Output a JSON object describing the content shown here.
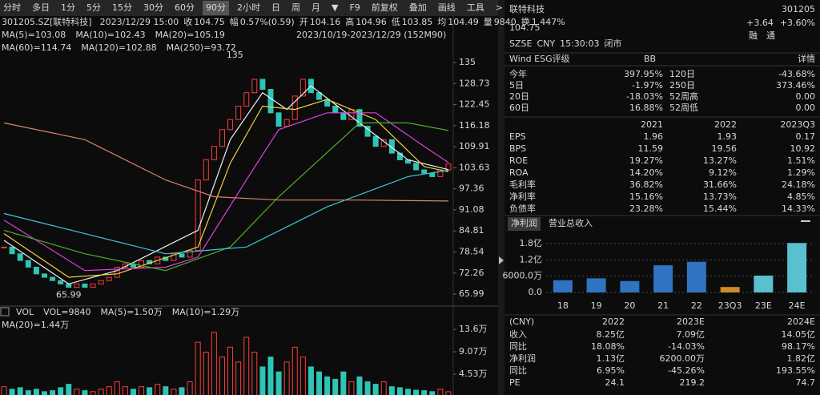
{
  "toolbar": {
    "items": [
      "分时",
      "多日",
      "1分",
      "5分",
      "15分",
      "30分",
      "60分",
      "90分",
      "2小时",
      "日",
      "周",
      "月",
      "▼",
      "F9",
      "前复权",
      "叠加",
      "画线",
      "工具",
      ">"
    ],
    "selected_index": 7
  },
  "quote_bar": {
    "symbol": "301205.SZ[联特科技]",
    "time": "2023/12/29 15:00",
    "fields": [
      {
        "label": "收",
        "value": "104.75",
        "color": "#ff3b3b"
      },
      {
        "label": "幅",
        "value": "0.57%(0.59)",
        "color": "#ff3b3b"
      },
      {
        "label": "开",
        "value": "104.16",
        "color": "#dddddd"
      },
      {
        "label": "高",
        "value": "104.96",
        "color": "#ff3b3b"
      },
      {
        "label": "低",
        "value": "103.85",
        "color": "#19c37d"
      },
      {
        "label": "均",
        "value": "104.49",
        "color": "#dddddd"
      },
      {
        "label": "量",
        "value": "9840",
        "color": "#dddddd"
      },
      {
        "label": "换",
        "value": "1.447%",
        "color": "#dddddd"
      }
    ]
  },
  "chart_data": [
    {
      "type": "candlestick",
      "range_label": "2023/10/19-2023/12/29 (152M90)",
      "high_label": "135",
      "low_label": "65.99",
      "up_color": "#ff3b3b",
      "down_color": "#2ec4b6",
      "closes": [
        80,
        78,
        76,
        74,
        72,
        71,
        70,
        69,
        68,
        69,
        68,
        69,
        70,
        71,
        74,
        75,
        74,
        76,
        75,
        77,
        76,
        78,
        77,
        79,
        100,
        106,
        110,
        115,
        118,
        122,
        126,
        130,
        127,
        120,
        116,
        118,
        125,
        130,
        126,
        124,
        122,
        120,
        118,
        121,
        116,
        113,
        110,
        112,
        108,
        106,
        105,
        103,
        102,
        101,
        103,
        104.75
      ],
      "series": [
        {
          "name": "MA(5)=103.08",
          "color": "#f0f0f0",
          "x": [
            0,
            8,
            14,
            24,
            28,
            32,
            35,
            38,
            44,
            50,
            55
          ],
          "values": [
            82,
            69,
            73,
            85,
            112,
            126,
            121,
            128,
            117,
            106,
            103.08
          ]
        },
        {
          "name": "MA(10)=102.43",
          "color": "#f2d43a",
          "x": [
            0,
            8,
            14,
            24,
            28,
            32,
            36,
            40,
            46,
            52,
            55
          ],
          "values": [
            84,
            71,
            72,
            80,
            105,
            122,
            121,
            124,
            118,
            104,
            102.43
          ]
        },
        {
          "name": "MA(20)=105.19",
          "color": "#e040e0",
          "x": [
            0,
            10,
            20,
            24,
            30,
            34,
            40,
            46,
            52,
            55
          ],
          "values": [
            88,
            73,
            74,
            77,
            100,
            115,
            120,
            120,
            110,
            105.19
          ]
        },
        {
          "name": "MA(60)=114.74",
          "color": "#4caf2a",
          "x": [
            0,
            10,
            20,
            28,
            34,
            44,
            50,
            55
          ],
          "values": [
            85,
            78,
            73,
            80,
            95,
            117,
            117,
            114.74
          ]
        },
        {
          "name": "MA(120)=102.88",
          "color": "#3cc8e0",
          "x": [
            0,
            10,
            20,
            30,
            40,
            50,
            55
          ],
          "values": [
            90,
            84,
            78,
            80,
            92,
            101,
            102.88
          ]
        },
        {
          "name": "MA(250)=93.72",
          "color": "#e08070",
          "x": [
            0,
            10,
            20,
            26,
            34,
            44,
            55
          ],
          "values": [
            117,
            112,
            100,
            95,
            94,
            94,
            93.72
          ]
        }
      ],
      "ylim": [
        62.89,
        139.78
      ],
      "yticks": [
        135,
        128.73,
        122.45,
        116.18,
        109.91,
        103.63,
        97.36,
        91.08,
        84.81,
        78.54,
        72.26,
        65.99
      ]
    },
    {
      "type": "volume",
      "legend": [
        {
          "text": "VOL",
          "color": "#dddddd"
        },
        {
          "text": "VOL=9840",
          "color": "#dddddd"
        },
        {
          "text": "MA(5)=1.50万",
          "color": "#dddddd"
        },
        {
          "text": "MA(10)=1.29万",
          "color": "#f2d43a"
        },
        {
          "text": "MA(20)=1.44万",
          "color": "#e040e0"
        }
      ],
      "values": [
        2,
        1.5,
        1.8,
        1.2,
        1.5,
        1,
        1.2,
        1.8,
        2.5,
        1.5,
        1.2,
        1,
        1.5,
        2,
        3,
        2,
        1.5,
        2,
        1.8,
        2.5,
        2,
        1.5,
        1.8,
        3,
        11,
        9,
        13,
        8,
        10,
        7,
        12,
        9,
        6,
        8,
        5,
        7,
        10,
        8,
        6,
        5,
        4,
        3.5,
        5,
        3,
        4,
        3,
        2.5,
        3,
        2,
        1.8,
        1.5,
        1.3,
        1.2,
        1,
        1.5,
        0.984
      ],
      "ylim": [
        0,
        15.4
      ],
      "yticks": [
        {
          "value": 13.6,
          "label": "13.6万"
        },
        {
          "value": 9.07,
          "label": "9.07万"
        },
        {
          "value": 4.53,
          "label": "4.53万"
        }
      ]
    },
    {
      "type": "bar",
      "tabs": [
        "净利润",
        "营业总收入"
      ],
      "active_tab": 0,
      "categories": [
        "18",
        "19",
        "20",
        "21",
        "22",
        "23Q3",
        "23E",
        "24E"
      ],
      "values": [
        0.45,
        0.52,
        0.42,
        1.0,
        1.13,
        0.2,
        0.62,
        1.82
      ],
      "colors": [
        "#2e74c0",
        "#2e74c0",
        "#2e74c0",
        "#2e74c0",
        "#2e74c0",
        "#d08a2a",
        "#58c0cf",
        "#58c0cf"
      ],
      "ylim": [
        0,
        2.36
      ],
      "yticks": [
        {
          "value": 0,
          "label": "0.0"
        },
        {
          "value": 0.6,
          "label": "6000.0万"
        },
        {
          "value": 1.2,
          "label": "1.2亿"
        },
        {
          "value": 1.8,
          "label": "1.8亿"
        }
      ],
      "grid": true
    }
  ],
  "right_panel": {
    "name": "联特科技",
    "code": "301205",
    "price": "104.75",
    "change": "+3.64",
    "change_pct": "+3.60%",
    "meta": [
      "SZSE",
      "CNY",
      "15:30:03",
      "闭市"
    ],
    "badges": [
      "融",
      "通"
    ],
    "esg": {
      "label": "Wind ESG评级",
      "rating": "BB",
      "link": "详情"
    },
    "returns": [
      [
        "今年",
        "397.95%",
        "120日",
        "-43.68%"
      ],
      [
        "5日",
        "-1.97%",
        "250日",
        "373.46%"
      ],
      [
        "20日",
        "-18.03%",
        "52周高",
        "0.00"
      ],
      [
        "60日",
        "16.88%",
        "52周低",
        "0.00"
      ]
    ],
    "fin": {
      "header": [
        "2021",
        "2022",
        "2023Q3"
      ],
      "rows": [
        [
          "EPS",
          "1.96",
          "1.93",
          "0.17"
        ],
        [
          "BPS",
          "11.59",
          "19.56",
          "10.92"
        ],
        [
          "ROE",
          "19.27%",
          "13.27%",
          "1.51%"
        ],
        [
          "ROA",
          "14.20%",
          "9.12%",
          "1.29%"
        ],
        [
          "毛利率",
          "36.82%",
          "31.66%",
          "24.18%"
        ],
        [
          "净利率",
          "15.16%",
          "13.73%",
          "4.85%"
        ],
        [
          "负债率",
          "23.28%",
          "15.44%",
          "14.33%"
        ]
      ]
    },
    "forecast": {
      "header": [
        "(CNY)",
        "2022",
        "2023E",
        "2024E"
      ],
      "rows": [
        [
          "收入",
          "8.25亿",
          "7.09亿",
          "14.05亿"
        ],
        [
          "同比",
          "18.08%",
          "-14.03%",
          "98.17%"
        ],
        [
          "净利润",
          "1.13亿",
          "6200.00万",
          "1.82亿"
        ],
        [
          "同比",
          "6.95%",
          "-45.26%",
          "193.55%"
        ],
        [
          "PE",
          "24.1",
          "219.2",
          "74.7"
        ]
      ]
    }
  }
}
